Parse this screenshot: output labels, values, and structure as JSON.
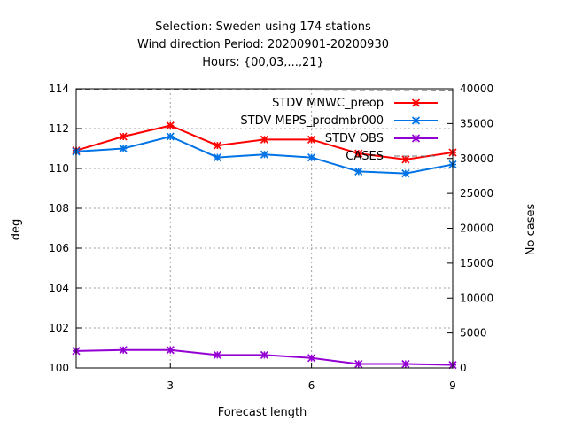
{
  "chart_data": {
    "type": "line",
    "title_lines": [
      "Selection: Sweden using   174 stations",
      "Wind direction   Period: 20200901-20200930",
      "Hours: {00,03,...,21}"
    ],
    "xlabel": "Forecast length",
    "ylabel": "deg",
    "y2label": "No cases",
    "xlim": [
      1,
      9
    ],
    "ylim": [
      100,
      114
    ],
    "y2lim": [
      0,
      40000
    ],
    "xticks": [
      3,
      6,
      9
    ],
    "yticks": [
      100,
      102,
      104,
      106,
      108,
      110,
      112,
      114
    ],
    "y2ticks": [
      0,
      5000,
      10000,
      15000,
      20000,
      25000,
      30000,
      35000,
      40000
    ],
    "grid": true,
    "legend_position": "top-right",
    "series": [
      {
        "name": "STDV MNWC_preop",
        "color": "#ff0000",
        "axis": "y1",
        "x": [
          1,
          2,
          3,
          4,
          5,
          6,
          7,
          8,
          9
        ],
        "values": [
          110.9,
          111.6,
          112.15,
          111.15,
          111.45,
          111.45,
          110.75,
          110.45,
          110.8
        ]
      },
      {
        "name": "STDV MEPS_prodmbr000",
        "color": "#0073e6",
        "axis": "y1",
        "x": [
          1,
          2,
          3,
          4,
          5,
          6,
          7,
          8,
          9
        ],
        "values": [
          110.85,
          111.0,
          111.6,
          110.55,
          110.7,
          110.55,
          109.85,
          109.75,
          110.2
        ]
      },
      {
        "name": "STDV OBS",
        "color": "#9400d3",
        "axis": "y1",
        "x": [
          1,
          2,
          3,
          4,
          5,
          6,
          7,
          8,
          9
        ],
        "values": [
          100.85,
          100.9,
          100.9,
          100.65,
          100.65,
          100.5,
          100.2,
          100.2,
          100.15
        ]
      },
      {
        "name": "CASES",
        "color": "#707070",
        "axis": "y2",
        "x": [
          1,
          2,
          3,
          4,
          5,
          6,
          7,
          8,
          9
        ],
        "values": [
          39900,
          39850,
          39900,
          39850,
          39850,
          39800,
          39750,
          39750,
          39700
        ]
      }
    ]
  }
}
